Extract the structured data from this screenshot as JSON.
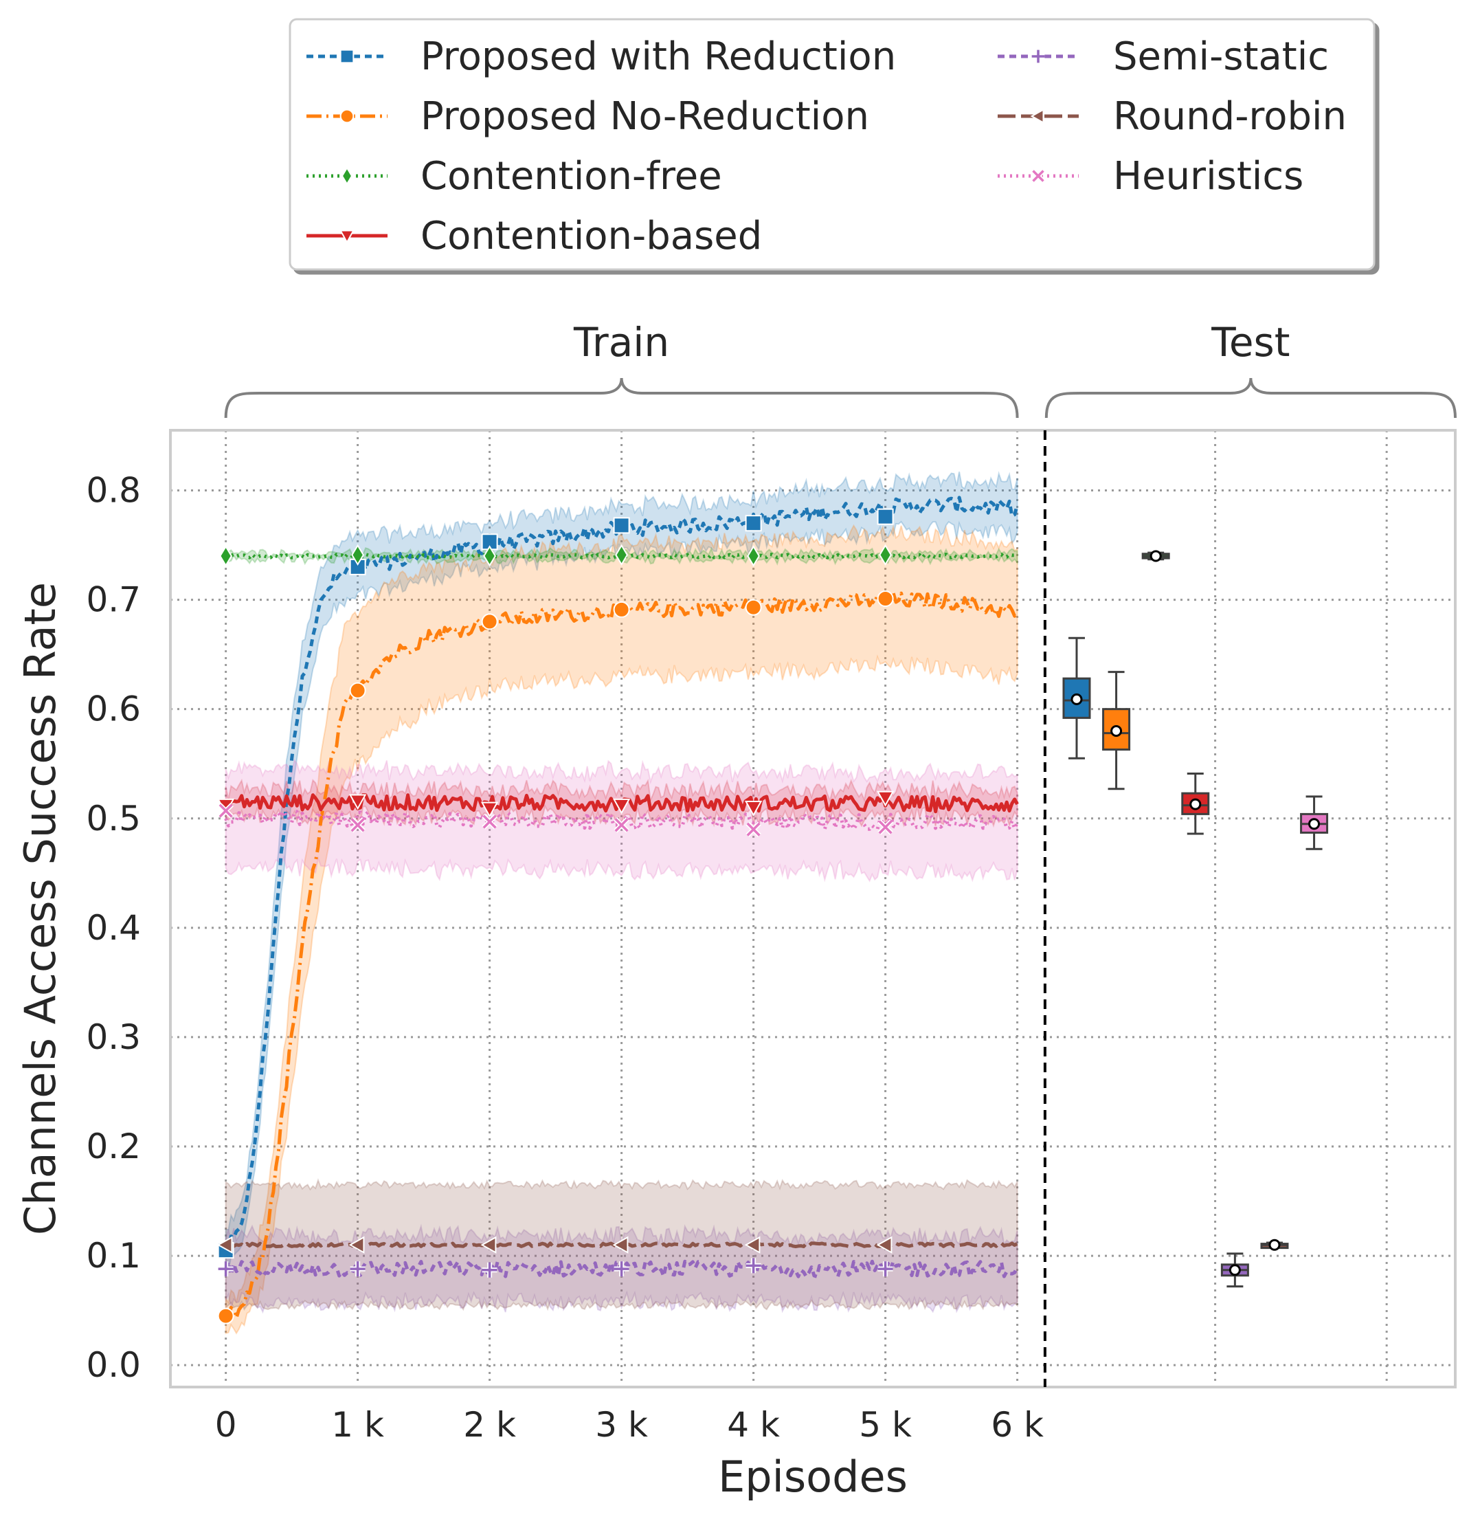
{
  "chart_data": {
    "type": "line",
    "xlabel": "Episodes",
    "ylabel": "Channels Access Success Rate",
    "x_ticks": [
      {
        "value": 0,
        "label": "0"
      },
      {
        "value": 1000,
        "label": "1 k"
      },
      {
        "value": 2000,
        "label": "2 k"
      },
      {
        "value": 3000,
        "label": "3 k"
      },
      {
        "value": 4000,
        "label": "4 k"
      },
      {
        "value": 5000,
        "label": "5 k"
      },
      {
        "value": 6000,
        "label": "6 k"
      }
    ],
    "y_ticks": [
      {
        "value": 0.0,
        "label": "0.0"
      },
      {
        "value": 0.1,
        "label": "0.1"
      },
      {
        "value": 0.2,
        "label": "0.2"
      },
      {
        "value": 0.3,
        "label": "0.3"
      },
      {
        "value": 0.4,
        "label": "0.4"
      },
      {
        "value": 0.5,
        "label": "0.5"
      },
      {
        "value": 0.6,
        "label": "0.6"
      },
      {
        "value": 0.7,
        "label": "0.7"
      },
      {
        "value": 0.8,
        "label": "0.8"
      }
    ],
    "xlim": [
      -420,
      9320
    ],
    "ylim": [
      -0.02,
      0.855
    ],
    "grid": true,
    "legend_position": "top",
    "sections": [
      {
        "label": "Train",
        "x_range": [
          0,
          6000
        ]
      },
      {
        "label": "Test",
        "x_range": [
          6220,
          9320
        ]
      }
    ],
    "divider_x": 6210,
    "series": [
      {
        "name": "Proposed with Reduction",
        "color": "#1f77b4",
        "dash": "10,7",
        "marker": "square",
        "x": [
          0,
          100,
          200,
          300,
          400,
          500,
          600,
          700,
          800,
          900,
          1000,
          1500,
          2000,
          2500,
          3000,
          3500,
          4000,
          4500,
          5000,
          5500,
          6000
        ],
        "y": [
          0.105,
          0.12,
          0.18,
          0.3,
          0.44,
          0.56,
          0.64,
          0.69,
          0.715,
          0.725,
          0.73,
          0.74,
          0.75,
          0.757,
          0.765,
          0.768,
          0.772,
          0.78,
          0.785,
          0.787,
          0.783
        ],
        "band": [
          0.018,
          0.018,
          0.022,
          0.03,
          0.035,
          0.035,
          0.032,
          0.03,
          0.028,
          0.028,
          0.028,
          0.022,
          0.02,
          0.02,
          0.02,
          0.02,
          0.02,
          0.022,
          0.022,
          0.022,
          0.022
        ],
        "marker_x": [
          0,
          1000,
          2000,
          3000,
          4000,
          5000
        ],
        "marker_y": [
          0.105,
          0.73,
          0.753,
          0.768,
          0.77,
          0.776
        ]
      },
      {
        "name": "Proposed No-Reduction",
        "color": "#ff7f0e",
        "dash": "22,7,3,7",
        "marker": "circle",
        "x": [
          0,
          100,
          200,
          300,
          400,
          500,
          600,
          700,
          800,
          900,
          1000,
          1200,
          1500,
          2000,
          2500,
          3000,
          3500,
          4000,
          4500,
          5000,
          5500,
          6000
        ],
        "y": [
          0.045,
          0.048,
          0.07,
          0.11,
          0.2,
          0.3,
          0.4,
          0.48,
          0.55,
          0.6,
          0.62,
          0.645,
          0.665,
          0.68,
          0.686,
          0.69,
          0.692,
          0.694,
          0.697,
          0.7,
          0.698,
          0.688
        ],
        "band": [
          0.015,
          0.015,
          0.02,
          0.03,
          0.04,
          0.05,
          0.055,
          0.06,
          0.065,
          0.07,
          0.07,
          0.07,
          0.065,
          0.06,
          0.06,
          0.06,
          0.06,
          0.06,
          0.06,
          0.06,
          0.06,
          0.06
        ],
        "marker_x": [
          0,
          1000,
          2000,
          3000,
          4000,
          5000
        ],
        "marker_y": [
          0.045,
          0.617,
          0.68,
          0.691,
          0.693,
          0.701
        ]
      },
      {
        "name": "Contention-free",
        "color": "#2ca02c",
        "dash": "3,6",
        "marker": "diamond",
        "x": [
          0,
          6000
        ],
        "y": [
          0.74,
          0.74
        ],
        "band": [
          0.003,
          0.003
        ],
        "marker_x": [
          0,
          1000,
          2000,
          3000,
          4000,
          5000
        ],
        "marker_y": [
          0.74,
          0.741,
          0.74,
          0.741,
          0.74,
          0.741
        ]
      },
      {
        "name": "Contention-based",
        "color": "#d62728",
        "dash": "",
        "marker": "triangle-down",
        "x": [
          0,
          6000
        ],
        "y": [
          0.515,
          0.513
        ],
        "band": [
          0.012,
          0.012
        ],
        "marker_x": [
          0,
          1000,
          2000,
          3000,
          4000,
          5000
        ],
        "marker_y": [
          0.512,
          0.516,
          0.509,
          0.512,
          0.51,
          0.519
        ]
      },
      {
        "name": "Semi-static",
        "color": "#9467bd",
        "dash": "10,7",
        "marker": "plus",
        "x": [
          0,
          6000
        ],
        "y": [
          0.088,
          0.088
        ],
        "band": [
          0.03,
          0.03
        ],
        "marker_x": [
          0,
          1000,
          2000,
          3000,
          4000,
          5000
        ],
        "marker_y": [
          0.088,
          0.088,
          0.087,
          0.088,
          0.091,
          0.088
        ]
      },
      {
        "name": "Round-robin",
        "color": "#8c564b",
        "dash": "26,8",
        "marker": "triangle-left",
        "x": [
          0,
          6000
        ],
        "y": [
          0.11,
          0.11
        ],
        "band": [
          0.055,
          0.055
        ],
        "marker_x": [
          0,
          1000,
          2000,
          3000,
          4000,
          5000
        ],
        "marker_y": [
          0.11,
          0.11,
          0.11,
          0.11,
          0.11,
          0.11
        ]
      },
      {
        "name": "Heuristics",
        "color": "#e377c2",
        "dash": "3,6",
        "marker": "x",
        "x": [
          0,
          6000
        ],
        "y": [
          0.5,
          0.496
        ],
        "band": [
          0.045,
          0.045
        ],
        "marker_x": [
          0,
          1000,
          2000,
          3000,
          4000,
          5000
        ],
        "marker_y": [
          0.507,
          0.494,
          0.497,
          0.494,
          0.49,
          0.492
        ]
      }
    ],
    "test_boxplots": [
      {
        "name": "Proposed with Reduction",
        "color": "#1f77b4",
        "x": 6450,
        "whisker_low": 0.555,
        "q1": 0.592,
        "median": 0.608,
        "q3": 0.628,
        "whisker_high": 0.665,
        "mean": 0.609
      },
      {
        "name": "Proposed No-Reduction",
        "color": "#ff7f0e",
        "x": 6750,
        "whisker_low": 0.527,
        "q1": 0.563,
        "median": 0.578,
        "q3": 0.6,
        "whisker_high": 0.634,
        "mean": 0.58
      },
      {
        "name": "Contention-free",
        "color": "#2ca02c",
        "x": 7050,
        "whisker_low": 0.737,
        "q1": 0.738,
        "median": 0.74,
        "q3": 0.742,
        "whisker_high": 0.743,
        "mean": 0.74
      },
      {
        "name": "Contention-based",
        "color": "#d62728",
        "x": 7350,
        "whisker_low": 0.486,
        "q1": 0.504,
        "median": 0.512,
        "q3": 0.523,
        "whisker_high": 0.541,
        "mean": 0.513
      },
      {
        "name": "Semi-static",
        "color": "#9467bd",
        "x": 7650,
        "whisker_low": 0.072,
        "q1": 0.082,
        "median": 0.087,
        "q3": 0.092,
        "whisker_high": 0.102,
        "mean": 0.087
      },
      {
        "name": "Round-robin",
        "color": "#8c564b",
        "x": 7950,
        "whisker_low": 0.108,
        "q1": 0.109,
        "median": 0.11,
        "q3": 0.111,
        "whisker_high": 0.112,
        "mean": 0.11
      },
      {
        "name": "Heuristics",
        "color": "#e377c2",
        "x": 8250,
        "whisker_low": 0.472,
        "q1": 0.487,
        "median": 0.495,
        "q3": 0.504,
        "whisker_high": 0.52,
        "mean": 0.495
      }
    ]
  }
}
